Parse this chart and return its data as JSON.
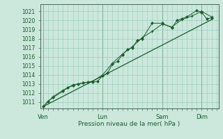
{
  "bg_color": "#cce8dd",
  "grid_color": "#99ccbb",
  "line_color": "#1a5c2a",
  "marker_color": "#1a5c2a",
  "xlabel_text": "Pression niveau de la mer( hPa )",
  "ylim": [
    1010.3,
    1021.8
  ],
  "yticks": [
    1011,
    1012,
    1013,
    1014,
    1015,
    1016,
    1017,
    1018,
    1019,
    1020,
    1021
  ],
  "day_labels": [
    "Ven",
    "Lun",
    "Sam",
    "Dim"
  ],
  "day_positions": [
    0.0,
    3.0,
    6.0,
    8.0
  ],
  "xlim": [
    -0.15,
    8.85
  ],
  "series1_x": [
    0.0,
    0.25,
    0.5,
    1.0,
    1.25,
    1.5,
    1.75,
    2.0,
    2.25,
    2.5,
    2.75,
    3.0,
    3.25,
    3.5,
    3.75,
    4.0,
    4.25,
    4.5,
    4.75,
    5.0,
    5.5,
    6.0,
    6.5,
    6.75,
    7.0,
    7.25,
    7.75,
    8.0,
    8.25,
    8.5
  ],
  "series1_y": [
    1010.5,
    1011.1,
    1011.5,
    1012.2,
    1012.6,
    1012.8,
    1013.0,
    1013.1,
    1013.2,
    1013.2,
    1013.3,
    1013.9,
    1014.2,
    1015.2,
    1015.5,
    1016.2,
    1016.8,
    1017.0,
    1017.8,
    1018.0,
    1019.7,
    1019.7,
    1019.2,
    1020.0,
    1020.2,
    1020.4,
    1021.1,
    1020.9,
    1020.2,
    1020.3
  ],
  "series2_x": [
    0.0,
    0.5,
    1.0,
    1.5,
    2.0,
    2.5,
    3.0,
    3.5,
    4.0,
    4.5,
    5.0,
    5.5,
    6.0,
    6.5,
    7.0,
    7.5,
    8.0,
    8.5
  ],
  "series2_y": [
    1010.5,
    1011.6,
    1012.3,
    1012.9,
    1013.1,
    1013.3,
    1014.0,
    1015.3,
    1016.3,
    1017.1,
    1018.1,
    1018.8,
    1019.6,
    1019.3,
    1020.1,
    1020.5,
    1021.0,
    1020.4
  ],
  "trend_x": [
    0.0,
    8.5
  ],
  "trend_y": [
    1010.5,
    1020.1
  ],
  "spine_color": "#446655",
  "tick_color": "#446655"
}
